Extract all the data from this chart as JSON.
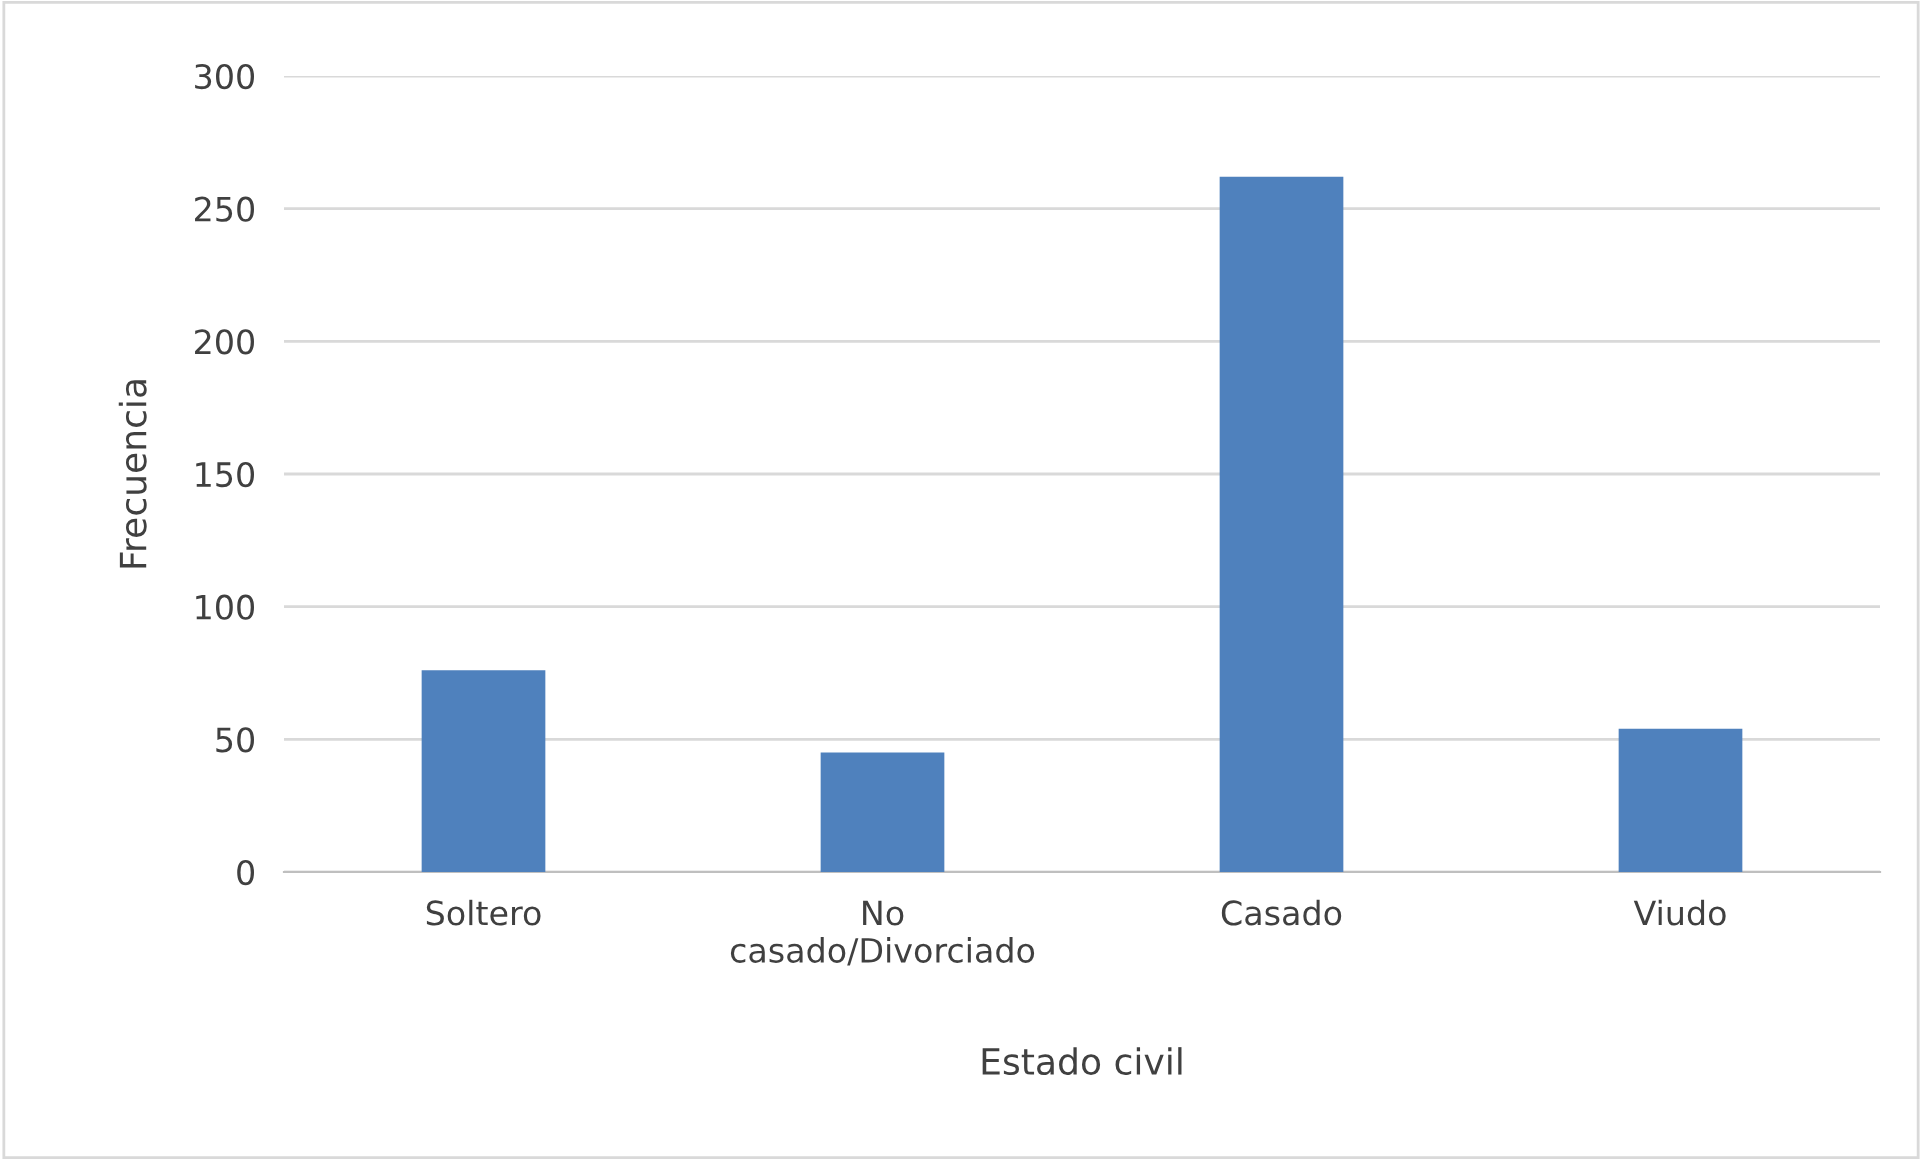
{
  "chart_data": {
    "type": "bar",
    "categories": [
      "Soltero",
      "No\ncasado/Divorciado",
      "Casado",
      "Viudo"
    ],
    "values": [
      76,
      45,
      262,
      54
    ],
    "color": "#4f81bd",
    "xlabel": "Estado civil",
    "ylabel": "Frecuencia",
    "ylim": [
      0,
      300
    ],
    "yticks": [
      0,
      50,
      100,
      150,
      200,
      250,
      300
    ],
    "grid": "y"
  }
}
